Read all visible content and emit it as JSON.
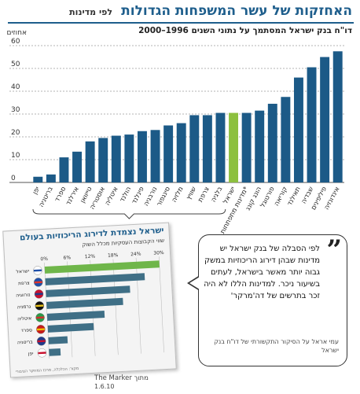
{
  "header": {
    "title": "האחזקות של עשר המשפחות הגדולות",
    "subtitle": "לפי מדינות",
    "caption": "דו\"ח בנק ישראל המסתמך על נתוני השנים 1996–2000",
    "unit_label": "אחוזים"
  },
  "chart_data": {
    "type": "bar",
    "title": "האחזקות של עשר המשפחות הגדולות",
    "subtitle": "דו\"ח בנק ישראל המסתמך על נתוני השנים 1996–2000",
    "ylabel": "אחוזים",
    "ylim": [
      0,
      60
    ],
    "yticks": [
      0,
      10,
      20,
      30,
      40,
      50,
      60
    ],
    "grid": true,
    "categories": [
      "יפן",
      "בריטניה",
      "ספרד",
      "אירלנד",
      "טייוואן",
      "אוסטריה",
      "איטליה",
      "הולנד",
      "פינלנד",
      "נורבגיה",
      "סינגפור",
      "מלזיה",
      "שוויץ",
      "צרפת",
      "בלגיה",
      "ישראל",
      "מדינות מתפתחות*",
      "הונג קונג",
      "פורטוגל",
      "קוריאה",
      "תאילנד",
      "שבדיה",
      "פיליפינים",
      "אינדונזיה"
    ],
    "values": [
      2.5,
      3.5,
      11,
      13.5,
      18,
      19.5,
      20.5,
      21,
      22.5,
      23,
      25,
      26,
      29.5,
      29.5,
      30.5,
      30.5,
      30.5,
      31.5,
      34.5,
      37.5,
      46,
      50.5,
      55,
      57.5
    ],
    "colors": {
      "default": "#1c5a87",
      "highlight": "#8dc03f"
    },
    "highlight": "ישראל"
  },
  "inset": {
    "title": "ישראל נצמדת לדירוג הריכוזיות בעולם",
    "subtitle": "שווי הקבוצות העסקיות מכלל השוק",
    "source": "מקור: הכלכלה, מרכז המחקר הציבורי",
    "chart_data": {
      "type": "bar",
      "orientation": "horizontal",
      "xticks": [
        "0%",
        "6%",
        "12%",
        "18%",
        "24%",
        "30%"
      ],
      "xlim": [
        0,
        30
      ],
      "categories": [
        "ישראל",
        "צרפת",
        "נורווגיה",
        "גרמניה",
        "איטליה",
        "ספרד",
        "בריטניה",
        "יפן"
      ],
      "values": [
        30,
        26,
        22,
        20,
        15,
        12,
        5,
        3
      ],
      "colors": {
        "default": "#3f6f86",
        "highlight": "#6fb64a"
      },
      "highlight": "ישראל"
    }
  },
  "quote": {
    "text": "לפי הסבלה של בנק ישראל יש מדינות שבהן דירוג הריכוזיות במשק גבוה יותר מאשר בישראל, לעתים בשיעור ניכר. למדינות הללו לא היה זכר בתרשים של דה'מרקר'",
    "author": "עמי אראל על הסיקור התקשורתי של דו\"ח בנק ישראל"
  },
  "source": {
    "credit": "מתוך The Marker",
    "date": "1.6.10"
  }
}
